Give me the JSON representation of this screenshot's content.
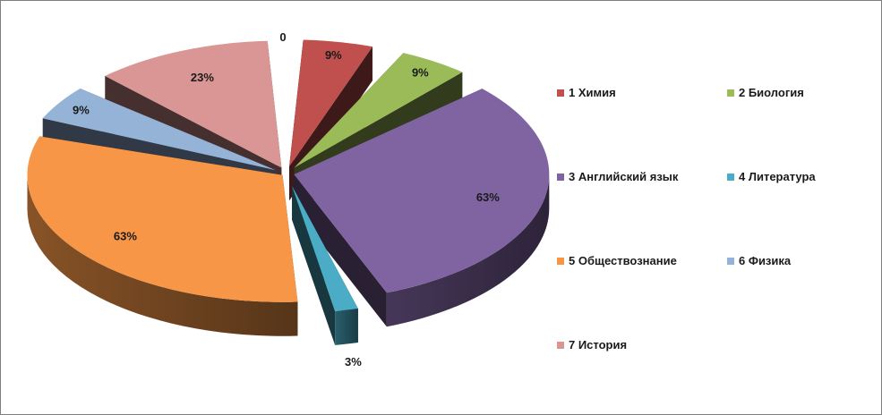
{
  "chart_data": {
    "type": "pie",
    "title": "",
    "is_3d": true,
    "exploded": true,
    "legend_position": "right",
    "categories": [
      "1 Химия",
      "2 Биология",
      "3 Английский язык",
      "4 Литература",
      "5 Обществознание",
      "6 Физика",
      "7 История"
    ],
    "values": [
      9,
      9,
      63,
      3,
      63,
      9,
      23
    ],
    "data_labels": [
      "9%",
      "9%",
      "63%",
      "3%",
      "63%",
      "9%",
      "23%"
    ],
    "colors": [
      "#C0504D",
      "#9BBB59",
      "#8064A2",
      "#4BACC6",
      "#F79646",
      "#95B3D7",
      "#D99694"
    ],
    "extra_labels": [
      "0"
    ]
  }
}
